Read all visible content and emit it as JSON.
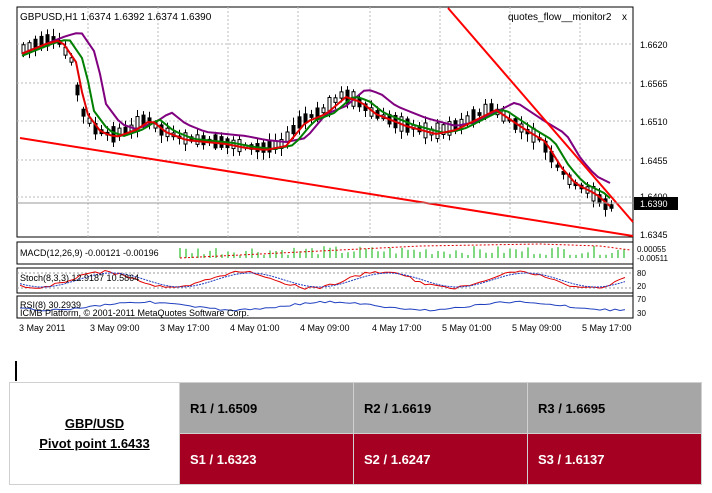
{
  "chart": {
    "header": {
      "symbol_info": "GBPUSD,H1  1.6374 1.6392 1.6374 1.6390",
      "indicator_name": "quotes_flow__monitor2",
      "close_symbol": "x"
    },
    "price_axis": {
      "labels": [
        "1.6620",
        "1.6565",
        "1.6510",
        "1.6455",
        "1.6400",
        "1.6345"
      ],
      "current_price": "1.6390"
    },
    "time_axis": [
      "3 May 2011",
      "3 May 09:00",
      "3 May 17:00",
      "4 May 01:00",
      "4 May 09:00",
      "4 May 17:00",
      "5 May 01:00",
      "5 May 09:00",
      "5 May 17:00"
    ],
    "macd": {
      "label": "MACD(12,26,9) -0.00121 -0.00196",
      "scale_labels": [
        "0.00055",
        "-0.00511"
      ]
    },
    "stoch": {
      "label": "Stoch(8,3,3) 12.9187 10.5864",
      "scale_labels": [
        "80",
        "20"
      ]
    },
    "rsi": {
      "label": "RSI(8) 30.2939",
      "scale_labels": [
        "70",
        "30"
      ]
    },
    "watermark": "ICMB Platform, © 2001-2011 MetaQuotes Software Corp.",
    "colors": {
      "bull": "#ffffff",
      "bear": "#000000",
      "ma_fast": "#e00000",
      "ma_mid": "#008000",
      "ma_slow": "#800080",
      "trendline": "#ff0000",
      "histogram": "#00b000"
    }
  },
  "pivot_table": {
    "pair": "GBP/USD",
    "pivot": "Pivot point 1.6433",
    "resistance": [
      "R1 / 1.6509",
      "R2 / 1.6619",
      "R3 / 1.6695"
    ],
    "support": [
      "S1 / 1.6323",
      "S2 / 1.6247",
      "S3 / 1.6137"
    ],
    "colors": {
      "resistance_bg": "#a6a6a6",
      "support_bg": "#a50021",
      "support_text": "#ffffff"
    }
  }
}
